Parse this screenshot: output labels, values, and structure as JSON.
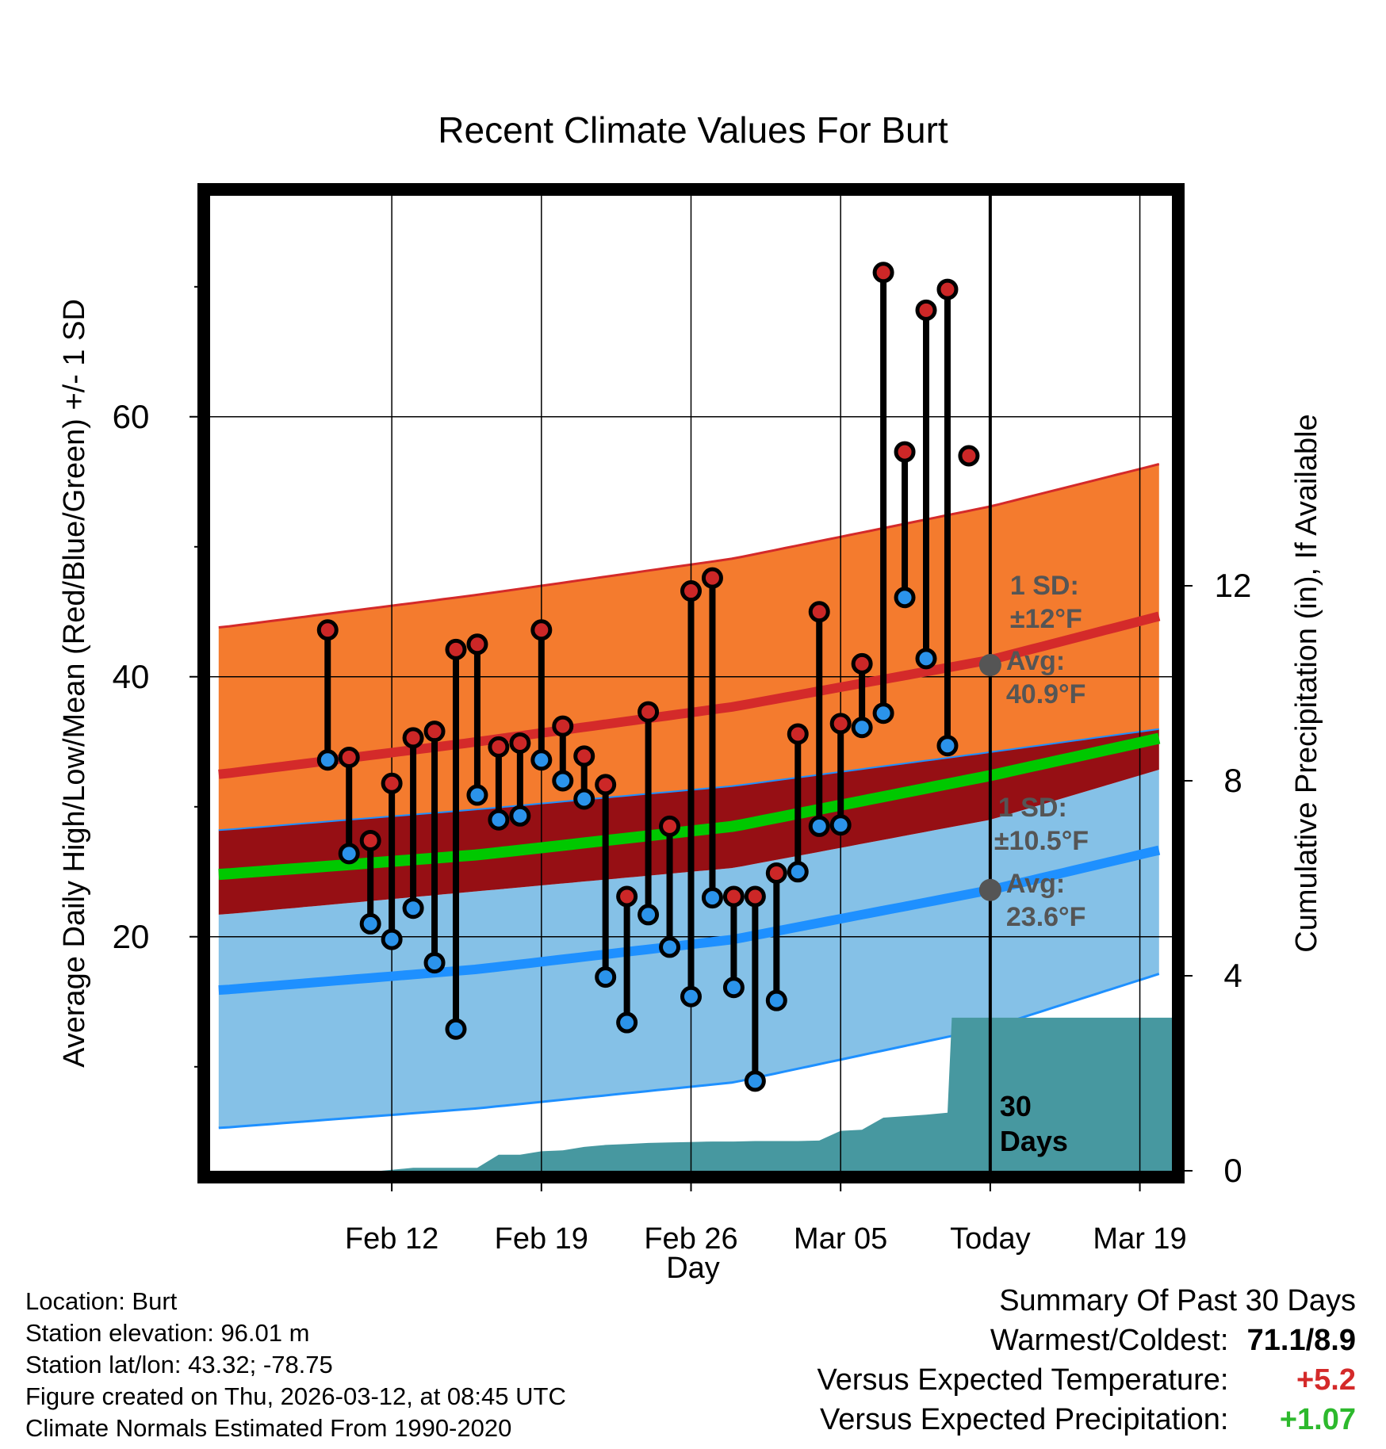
{
  "chart_data": {
    "type": "range",
    "title": "Recent Climate Values For Burt",
    "xlabel": "Day",
    "ylabel": "Average Daily High/Low/Mean (Red/Blue/Green) +/- 1 SD",
    "y2label": "Cumulative Precipitation (in), If Available",
    "x_range_days": [
      -36.5,
      8.5
    ],
    "ylim": [
      2,
      77
    ],
    "y_ticks": [
      20,
      40,
      60
    ],
    "y_minor_ticks": [
      10,
      30,
      50,
      70
    ],
    "y2lim": [
      0,
      20
    ],
    "y2_ticks": [
      0,
      4,
      8,
      12
    ],
    "x_ticks": [
      {
        "day": -28,
        "label": "Feb 12"
      },
      {
        "day": -21,
        "label": "Feb 19"
      },
      {
        "day": -14,
        "label": "Feb 26"
      },
      {
        "day": -7,
        "label": "Mar 05"
      },
      {
        "day": 0,
        "label": "Today"
      },
      {
        "day": 7,
        "label": "Mar 19"
      }
    ],
    "today_label": [
      "30",
      "Days"
    ],
    "days": [
      -31,
      -30,
      -29,
      -28,
      -27,
      -26,
      -25,
      -24,
      -23,
      -22,
      -21,
      -20,
      -19,
      -18,
      -17,
      -16,
      -15,
      -14,
      -13,
      -12,
      -11,
      -10,
      -9,
      -8,
      -7,
      -6,
      -5,
      -4,
      -3,
      -2,
      -1
    ],
    "highs": [
      43.6,
      33.8,
      27.4,
      31.8,
      35.3,
      35.8,
      42.1,
      42.5,
      34.6,
      34.9,
      43.6,
      36.2,
      33.9,
      31.7,
      23.1,
      37.3,
      28.5,
      46.6,
      47.6,
      23.1,
      23.1,
      24.9,
      35.6,
      45.0,
      36.4,
      41.0,
      71.1,
      57.3,
      68.2,
      69.8,
      57.0
    ],
    "lows": [
      33.6,
      26.4,
      21.0,
      19.8,
      22.2,
      18.0,
      12.9,
      30.9,
      29.0,
      29.3,
      33.6,
      32.0,
      30.6,
      16.9,
      13.4,
      21.7,
      19.2,
      15.4,
      23.0,
      16.1,
      8.9,
      15.1,
      25.0,
      28.5,
      28.6,
      36.1,
      37.2,
      46.1,
      41.4,
      34.7,
      null
    ],
    "normal_high": {
      "day": [
        -36,
        -24,
        -12,
        0,
        8
      ],
      "mean": [
        32.5,
        35.0,
        37.7,
        41.3,
        44.7
      ],
      "upper": [
        43.8,
        46.3,
        49.1,
        53.1,
        56.4
      ],
      "lower": [
        28.2,
        29.8,
        31.6,
        34.2,
        36.0
      ]
    },
    "normal_low": {
      "day": [
        -36,
        -24,
        -12,
        0,
        8
      ],
      "mean": [
        15.9,
        17.5,
        19.8,
        23.6,
        26.7
      ],
      "upper": [
        21.7,
        23.5,
        25.3,
        29.0,
        32.9
      ],
      "lower": [
        5.3,
        6.8,
        8.8,
        13.0,
        17.2
      ]
    },
    "normal_mean": {
      "day": [
        -36,
        -24,
        -12,
        0,
        8
      ],
      "values": [
        24.8,
        26.3,
        28.5,
        32.4,
        35.3
      ]
    },
    "precip_cumulative": {
      "day": [
        -36.5,
        -28.5,
        -27,
        -26,
        -25,
        -24,
        -23,
        -22,
        -21,
        -20,
        -19,
        -18,
        -17,
        -16,
        -15,
        -14,
        -13,
        -12,
        -11,
        -10,
        -9,
        -8,
        -7,
        -6,
        -5,
        -4,
        -3,
        -2,
        -1.8,
        -1,
        0,
        8.5
      ],
      "values": [
        0,
        0,
        0.06,
        0.06,
        0.06,
        0.06,
        0.33,
        0.33,
        0.4,
        0.42,
        0.49,
        0.53,
        0.55,
        0.57,
        0.58,
        0.59,
        0.6,
        0.6,
        0.61,
        0.61,
        0.61,
        0.62,
        0.82,
        0.84,
        1.09,
        1.12,
        1.15,
        1.19,
        3.14,
        3.14,
        3.14,
        3.14
      ]
    },
    "annotations": {
      "high_sd": "1 SD:",
      "high_sd_value": "±12°F",
      "high_avg": "Avg:",
      "high_avg_value": "40.9°F",
      "high_avg_point": 40.9,
      "low_sd": "1 SD:",
      "low_sd_value": "±10.5°F",
      "low_avg": "Avg:",
      "low_avg_value": "23.6°F",
      "low_avg_point": 23.6
    },
    "colors": {
      "high_band": "#F47B2E",
      "high_line": "#D42A2A",
      "low_band": "#85C1E7",
      "low_line": "#1E90FF",
      "overlap_band": "#960F14",
      "mean_line": "#00C800",
      "precip": "#4798A0",
      "high_marker": "#CC2727",
      "low_marker": "#2B93EA",
      "annotation": "#555555"
    }
  },
  "info": {
    "location": "Location: Burt",
    "elevation": "Station elevation: 96.01 m",
    "latlon": "Station lat/lon: 43.32; -78.75",
    "created": "Figure created on Thu, 2026-03-12, at 08:45 UTC",
    "normals": "Climate Normals Estimated From 1990-2020"
  },
  "summary": {
    "title": "Summary Of Past 30 Days",
    "warm_cold_label": "Warmest/Coldest:",
    "warm_cold_value": "71.1/8.9",
    "temp_label": "Versus Expected Temperature:",
    "temp_value": "+5.2",
    "temp_color": "#D42A2A",
    "precip_label": "Versus Expected Precipitation:",
    "precip_value": "+1.07",
    "precip_color": "#2DB92D"
  }
}
